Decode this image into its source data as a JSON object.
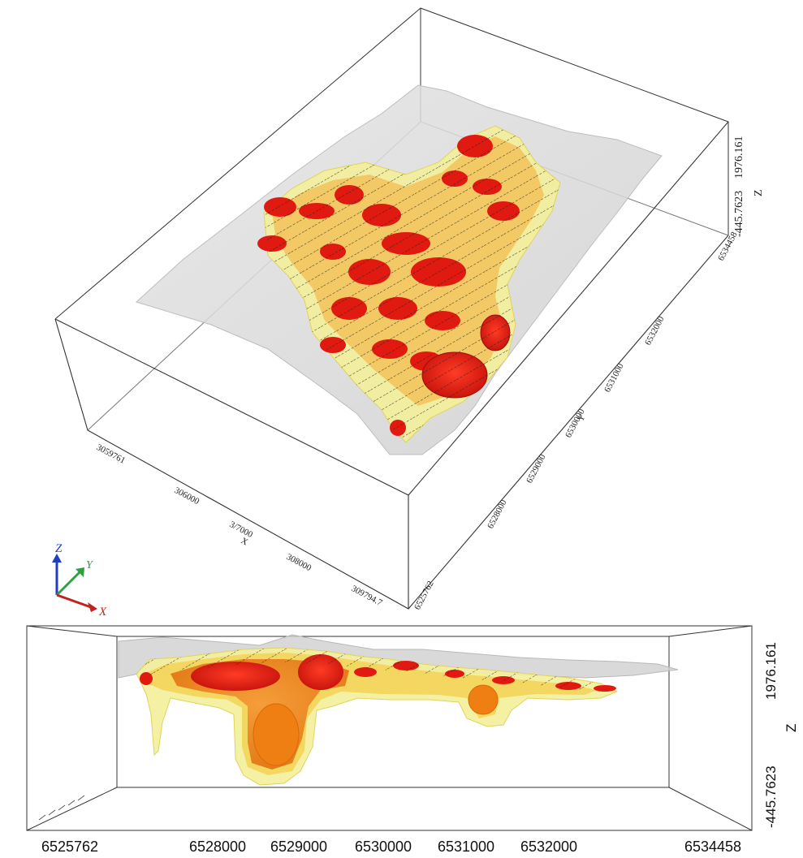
{
  "top_view": {
    "x_axis": {
      "title": "X",
      "ticks": [
        "3059761",
        "306000",
        "3/7000",
        "308000",
        "309794.7"
      ]
    },
    "y_axis": {
      "title": "Y",
      "ticks": [
        "6525762",
        "6528000",
        "6529000",
        "6530000",
        "6531000",
        "6532000",
        "6534458"
      ]
    },
    "z_axis": {
      "title": "Z",
      "ticks": [
        "-445.7623",
        "1976.161"
      ]
    },
    "triad": {
      "x": "X",
      "y": "Y",
      "z": "Z"
    }
  },
  "side_view": {
    "horizontal_ticks": [
      "6525762",
      "6528000",
      "6529000",
      "6530000",
      "6531000",
      "6532000",
      "6534458"
    ],
    "z_axis": {
      "title": "Z",
      "ticks": [
        "-445.7623",
        "1976.161"
      ]
    }
  },
  "colors": {
    "box": "#333333",
    "terrain": "#d9d9d9",
    "shell_pale": "#f4ef9a",
    "shell_yellow": "#f2d64b",
    "shell_orange": "#f0a040",
    "shell_deep": "#f07a10",
    "core_red": "#e01a10",
    "triad_x": "#c0221c",
    "triad_y": "#2ea043",
    "triad_z": "#1f3fbf"
  }
}
